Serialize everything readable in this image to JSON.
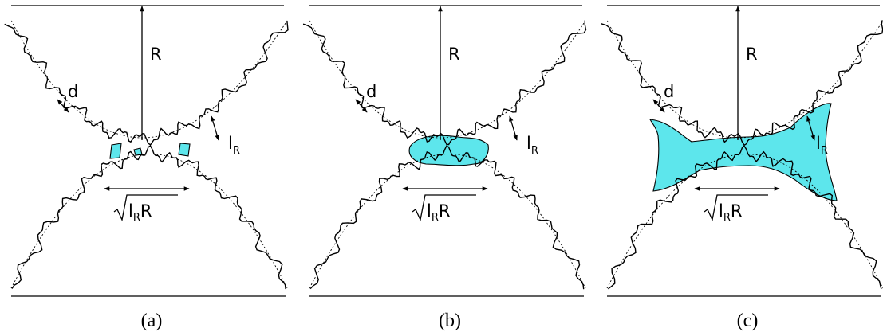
{
  "colors": {
    "liquid": "#5de6ec",
    "ink": "#000000"
  },
  "panels": [
    {
      "caption": "(a)",
      "liquid_stage": "small"
    },
    {
      "caption": "(b)",
      "liquid_stage": "medium"
    },
    {
      "caption": "(c)",
      "liquid_stage": "large"
    }
  ],
  "labels": {
    "radius": "R",
    "roughness": "d",
    "length_base": "l",
    "length_sub": "R",
    "width_base": "l",
    "width_sub": "R",
    "width_tail": "R"
  }
}
